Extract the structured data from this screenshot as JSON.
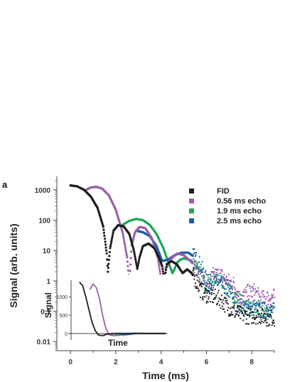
{
  "panel_label": "a",
  "colors": {
    "FID": "#1e1e1e",
    "0.56 ms echo": "#9b5fa8",
    "1.9 ms echo": "#1fa55a",
    "2.5 ms echo": "#1e5aa8"
  },
  "chart_data": [
    {
      "type": "scatter",
      "title": "",
      "xlabel": "Time (ms)",
      "ylabel": "Signal (arb. units)",
      "xlim": [
        -0.6,
        9.0
      ],
      "ylim": [
        0.005,
        2000
      ],
      "yscale": "log",
      "xticks": [
        0,
        2,
        4,
        6,
        8
      ],
      "xtick_labels": [
        "0",
        "2",
        "4",
        "6",
        "8"
      ],
      "yticks": [
        0.01,
        0.1,
        1,
        10,
        100,
        1000
      ],
      "ytick_labels": [
        "0.01",
        "0.1",
        "1",
        "10",
        "100",
        "1000"
      ],
      "grid": false,
      "legend_position": "top-right",
      "series": [
        {
          "name": "FID",
          "x": [
            0,
            0.3,
            0.6,
            0.9,
            1.2,
            1.45,
            1.6,
            1.65,
            1.75,
            1.9,
            2.1,
            2.35,
            2.6,
            2.8,
            2.95,
            3.05,
            3.2,
            3.45,
            3.7,
            3.9,
            4.05,
            4.15,
            4.25,
            4.45,
            4.7,
            4.95,
            5.15,
            5.35,
            5.55,
            5.75,
            6.0,
            6.3,
            6.6,
            6.9,
            7.2,
            7.5,
            7.8,
            8.1,
            8.4,
            8.7,
            9.0
          ],
          "y": [
            1400,
            1300,
            1000,
            600,
            250,
            60,
            8,
            2.0,
            12,
            45,
            68,
            62,
            35,
            10,
            2.5,
            6,
            14,
            17,
            12,
            6,
            3,
            1.0,
            3.5,
            4.5,
            3.5,
            1.8,
            2.4,
            1.8,
            1.0,
            0.5,
            0.35,
            0.3,
            0.25,
            0.15,
            0.1,
            0.08,
            0.07,
            0.07,
            0.07,
            0.06,
            0.06
          ]
        },
        {
          "name": "0.56 ms echo",
          "x": [
            0.7,
            0.9,
            1.15,
            1.4,
            1.7,
            2.0,
            2.3,
            2.5,
            2.6,
            2.7,
            2.85,
            3.05,
            3.3,
            3.6,
            3.85,
            4.0,
            4.1,
            4.2,
            4.4,
            4.7,
            5.0,
            5.3,
            5.6,
            5.85,
            6.0,
            6.1,
            6.3,
            6.6,
            6.9,
            7.2,
            7.5,
            7.8,
            8.1,
            8.4,
            8.7,
            9.0
          ],
          "y": [
            1000,
            1200,
            1250,
            1100,
            650,
            220,
            40,
            6,
            0.8,
            15,
            40,
            60,
            55,
            25,
            6,
            1.2,
            0.4,
            2.5,
            5,
            8,
            7,
            4.5,
            2.5,
            0.9,
            0.5,
            0.8,
            1.5,
            1.6,
            1.0,
            0.8,
            0.25,
            0.4,
            0.45,
            0.25,
            0.28,
            0.3
          ]
        },
        {
          "name": "1.9 ms echo",
          "x": [
            2.3,
            2.6,
            2.9,
            3.2,
            3.5,
            3.8,
            4.1,
            4.3,
            4.5,
            4.6,
            4.7,
            4.85,
            5.0,
            5.3,
            5.6,
            5.8,
            5.95,
            6.05,
            6.2,
            6.5,
            6.8,
            7.1,
            7.4,
            7.7,
            8.0,
            8.3,
            8.6,
            8.9
          ],
          "y": [
            70,
            95,
            110,
            100,
            70,
            35,
            12,
            4.5,
            1.8,
            2.5,
            4,
            5,
            5.5,
            4.8,
            2.8,
            1.4,
            0.55,
            0.9,
            1.2,
            1.0,
            0.7,
            0.4,
            0.25,
            0.15,
            0.1,
            0.12,
            0.1,
            0.1
          ]
        },
        {
          "name": "2.5 ms echo",
          "x": [
            2.9,
            3.2,
            3.5,
            3.8,
            4.05,
            4.3,
            4.6,
            4.9,
            5.2,
            5.5,
            5.75,
            5.95,
            6.05,
            6.15,
            6.3,
            6.6,
            6.9,
            7.2,
            7.5,
            7.8,
            8.1,
            8.4,
            8.7,
            9.0
          ],
          "y": [
            45,
            40,
            30,
            14,
            4.5,
            5,
            7,
            8.5,
            8.5,
            6,
            3,
            1.3,
            0.7,
            0.8,
            1.0,
            0.8,
            0.6,
            0.3,
            0.15,
            0.12,
            0.13,
            0.1,
            0.12,
            0.1
          ]
        }
      ]
    },
    {
      "type": "line",
      "title": "",
      "xlabel": "Time",
      "ylabel": "Signal",
      "yticks": [
        0,
        500,
        1000
      ],
      "ytick_labels": [
        "0",
        "500",
        "1000"
      ],
      "ylim": [
        -100,
        1450
      ],
      "xlim": [
        0,
        4.6
      ],
      "series": [
        {
          "name": "FID",
          "x": [
            0.4,
            0.55,
            0.7,
            0.85,
            1.0,
            1.15,
            1.3,
            1.5,
            1.7,
            2.0,
            2.5,
            3.0,
            3.5,
            4.0,
            4.5
          ],
          "y": [
            1400,
            1300,
            1000,
            650,
            300,
            80,
            -40,
            -60,
            -20,
            5,
            0,
            0,
            0,
            0,
            0
          ]
        },
        {
          "name": "0.56 ms echo",
          "x": [
            0.9,
            1.05,
            1.2,
            1.35,
            1.5,
            1.65,
            1.8,
            2.0,
            2.3,
            2.8,
            3.5,
            4.5
          ],
          "y": [
            1200,
            1350,
            1250,
            950,
            500,
            150,
            -30,
            -60,
            0,
            0,
            0,
            0
          ]
        },
        {
          "name": "1.9 ms echo",
          "x": [
            1.8,
            2.1,
            2.4,
            2.7,
            3.0,
            3.3,
            3.6,
            4.0,
            4.5
          ],
          "y": [
            0,
            -60,
            -40,
            0,
            10,
            5,
            0,
            0,
            0
          ]
        },
        {
          "name": "2.5 ms echo",
          "x": [
            2.2,
            2.5,
            2.8,
            3.1,
            3.4,
            3.8,
            4.5
          ],
          "y": [
            0,
            -40,
            -25,
            0,
            5,
            0,
            0
          ]
        }
      ]
    }
  ]
}
